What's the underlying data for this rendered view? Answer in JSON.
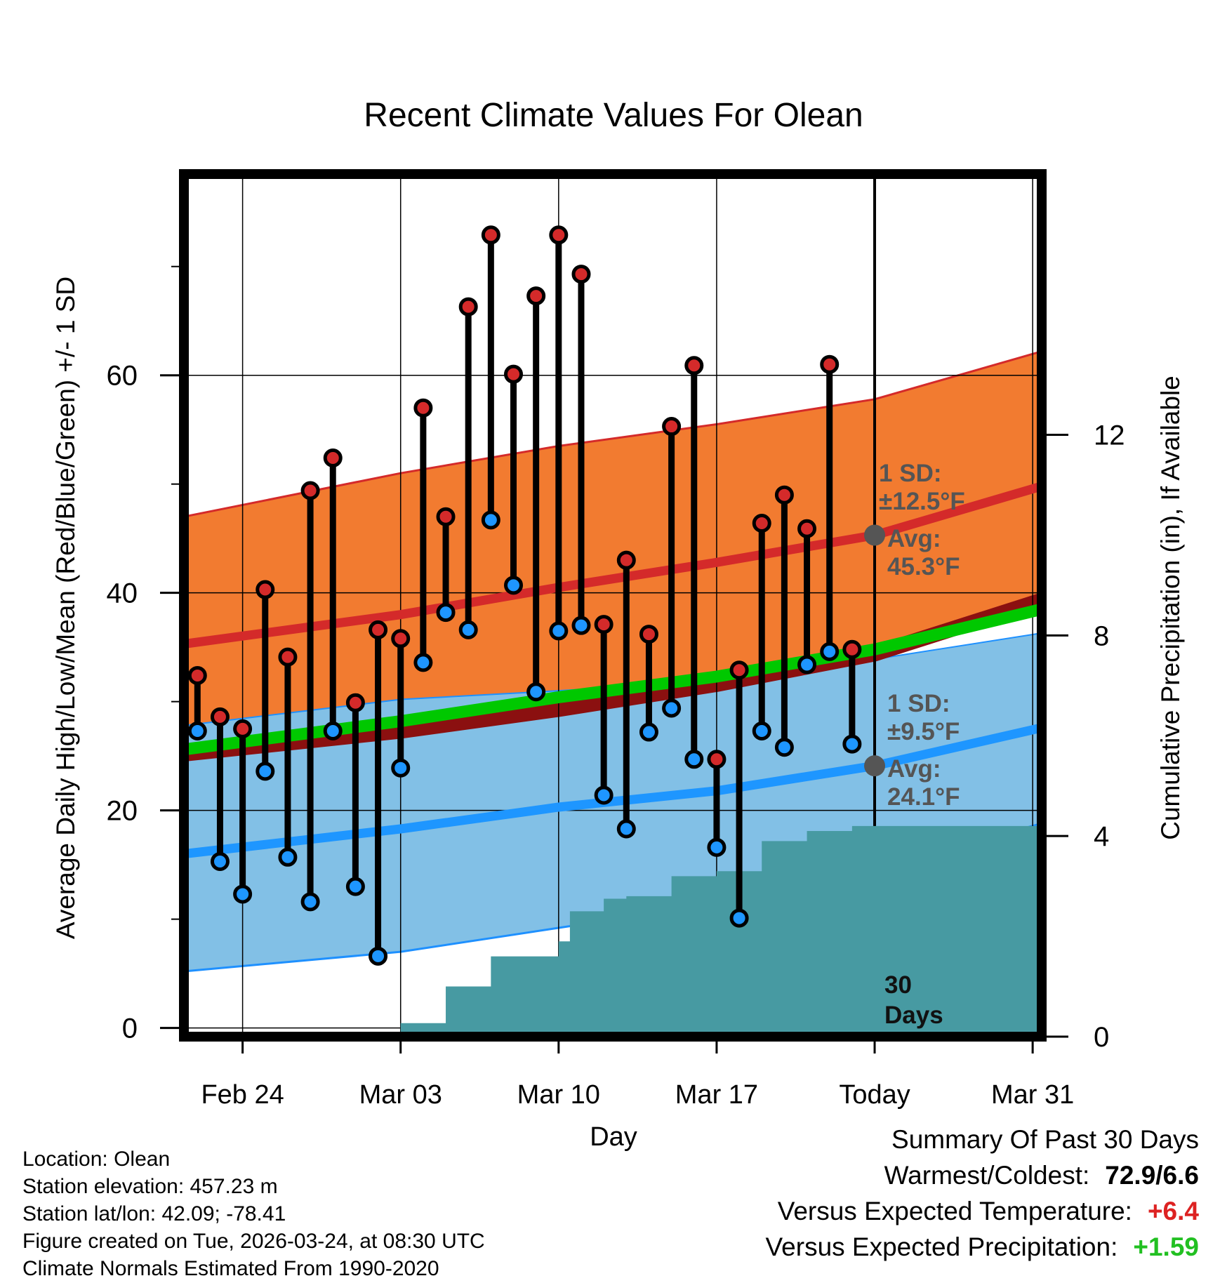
{
  "chart_data": {
    "type": "line",
    "title": "Recent Climate Values For Olean",
    "xlabel": "Day",
    "ylabel": "Average Daily High/Low/Mean (Red/Blue/Green) +/- 1 SD",
    "ylabel_right": "Cumulative Precipitation (in), If Available",
    "xlim": [
      -2.6,
      35.4
    ],
    "ylim": [
      -0.8,
      78.5
    ],
    "y2lim": [
      0,
      17.2
    ],
    "x_ticks": [
      {
        "x": 0,
        "label": "Feb 24"
      },
      {
        "x": 7,
        "label": "Mar 03"
      },
      {
        "x": 14,
        "label": "Mar 10"
      },
      {
        "x": 21,
        "label": "Mar 17"
      },
      {
        "x": 28,
        "label": "Today"
      },
      {
        "x": 35,
        "label": "Mar 31"
      }
    ],
    "y_ticks": [
      0,
      20,
      40,
      60
    ],
    "y2_ticks": [
      0,
      4,
      8,
      12
    ],
    "grid": true,
    "today_x": 28,
    "days": [
      -2,
      -1,
      0,
      1,
      2,
      3,
      4,
      5,
      6,
      7,
      8,
      9,
      10,
      11,
      12,
      13,
      14,
      15,
      16,
      17,
      18,
      19,
      20,
      21,
      22,
      23,
      24,
      25,
      26,
      27
    ],
    "series": [
      {
        "name": "Observed High",
        "color": "#d42a2a",
        "values": [
          32.4,
          28.6,
          27.5,
          40.3,
          34.1,
          49.4,
          52.4,
          29.9,
          36.6,
          35.8,
          57.0,
          47.0,
          66.3,
          72.9,
          60.1,
          67.3,
          72.9,
          69.3,
          37.1,
          43.0,
          36.2,
          55.3,
          60.9,
          24.7,
          32.9,
          46.4,
          49.0,
          45.9,
          61.0,
          34.8
        ]
      },
      {
        "name": "Observed Low",
        "color": "#1e96ff",
        "values": [
          27.3,
          15.3,
          12.3,
          23.6,
          15.7,
          11.6,
          27.3,
          13.0,
          6.6,
          23.9,
          33.6,
          38.2,
          36.6,
          46.7,
          40.7,
          30.9,
          36.5,
          37.0,
          21.4,
          18.3,
          27.2,
          29.4,
          24.7,
          16.6,
          10.1,
          27.3,
          25.8,
          33.4,
          34.6,
          26.1
        ]
      },
      {
        "name": "Normal High Mean",
        "color": "#d42a2a",
        "x": [
          -2.6,
          7,
          14,
          21,
          28,
          35.4
        ],
        "values": [
          35.3,
          38.0,
          40.5,
          42.8,
          45.3,
          49.8
        ]
      },
      {
        "name": "Normal High +/- 1 SD",
        "color": "#f27b30",
        "x": [
          -2.6,
          7,
          14,
          21,
          28,
          35.4
        ],
        "upper": [
          47.0,
          51.0,
          53.5,
          55.5,
          57.8,
          62.2
        ],
        "lower": [
          25.2,
          27.3,
          29.3,
          31.6,
          34.4,
          39.3
        ]
      },
      {
        "name": "Normal Low Mean",
        "color": "#1e96ff",
        "x": [
          -2.6,
          7,
          14,
          21,
          28,
          35.4
        ],
        "values": [
          16.0,
          18.3,
          20.3,
          21.8,
          24.1,
          27.6
        ]
      },
      {
        "name": "Normal Low +/- 1 SD",
        "color": "#82c0e6",
        "x": [
          -2.6,
          7,
          14,
          21,
          28,
          35.4
        ],
        "upper": [
          27.8,
          30.2,
          31.0,
          31.9,
          33.9,
          36.3
        ],
        "lower": [
          5.2,
          7.0,
          9.2,
          11.4,
          14.6,
          18.8
        ]
      },
      {
        "name": "Normal Mean",
        "color": "#00c800",
        "x": [
          -2.6,
          7,
          14,
          21,
          28,
          35.4
        ],
        "values": [
          25.6,
          28.2,
          30.4,
          32.3,
          34.8,
          38.5
        ]
      },
      {
        "name": "Cumulative Precipitation",
        "color": "#479aa2",
        "axis": "right",
        "x": [
          -2.6,
          0,
          1,
          6,
          7,
          8,
          9,
          10,
          11,
          12,
          13,
          14,
          14.5,
          15,
          16,
          17,
          18,
          19,
          20,
          21,
          22,
          23,
          24,
          25,
          26,
          27,
          35.4
        ],
        "values": [
          0,
          0,
          0.05,
          0.07,
          0.27,
          0.27,
          1.0,
          1.0,
          1.6,
          1.6,
          1.6,
          1.9,
          2.5,
          2.5,
          2.75,
          2.8,
          2.8,
          3.2,
          3.2,
          3.3,
          3.3,
          3.9,
          3.9,
          4.1,
          4.1,
          4.2,
          4.2
        ]
      }
    ],
    "annotations": {
      "high_sd_label": "1 SD:",
      "high_sd_value": "±12.5°F",
      "high_avg_label": "Avg:",
      "high_avg_value": "45.3°F",
      "high_avg": 45.3,
      "low_sd_label": "1 SD:",
      "low_sd_value": "±9.5°F",
      "low_avg_label": "Avg:",
      "low_avg_value": "24.1°F",
      "low_avg": 24.1,
      "window_number": "30",
      "window_unit": "Days"
    }
  },
  "location": {
    "name_line": "Location: Olean",
    "elevation_line": "Station elevation: 457.23 m",
    "latlon_line": "Station lat/lon: 42.09; -78.41",
    "created_line": "Figure created on Tue, 2026-03-24, at 08:30 UTC",
    "normals_line": "Climate Normals Estimated From 1990-2020"
  },
  "summary": {
    "heading": "Summary Of Past 30 Days",
    "warm_cold_label": "Warmest/Coldest:",
    "warm_cold_value": "72.9/6.6",
    "temp_label": "Versus Expected Temperature:",
    "temp_value": "+6.4",
    "temp_color": "#dd2222",
    "precip_label": "Versus Expected Precipitation:",
    "precip_value": "+1.59",
    "precip_color": "#22c022"
  }
}
